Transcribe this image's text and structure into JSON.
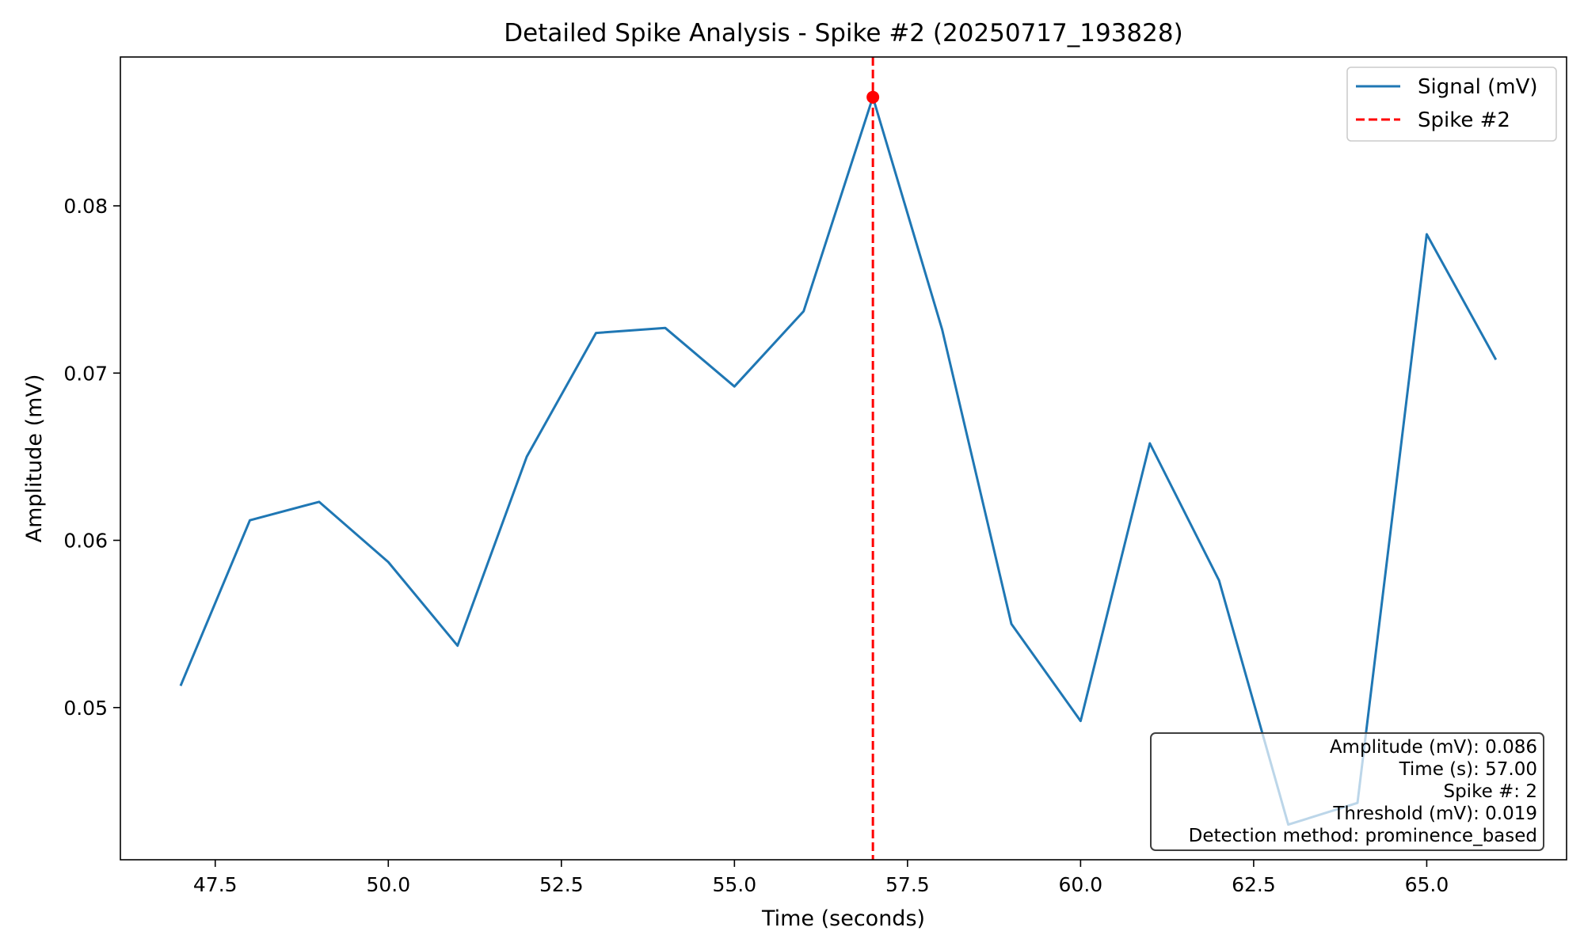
{
  "chart_data": {
    "type": "line",
    "title": "Detailed Spike Analysis - Spike #2 (20250717_193828)",
    "xlabel": "Time (seconds)",
    "ylabel": "Amplitude (mV)",
    "xlim": [
      46.13,
      67.02
    ],
    "ylim": [
      0.0409,
      0.0889
    ],
    "xticks": [
      47.5,
      50.0,
      52.5,
      55.0,
      57.5,
      60.0,
      62.5,
      65.0
    ],
    "xtick_labels": [
      "47.5",
      "50.0",
      "52.5",
      "55.0",
      "57.5",
      "60.0",
      "62.5",
      "65.0"
    ],
    "yticks": [
      0.05,
      0.06,
      0.07,
      0.08
    ],
    "ytick_labels": [
      "0.05",
      "0.06",
      "0.07",
      "0.08"
    ],
    "grid": false,
    "legend_position": "top-right",
    "series": [
      {
        "name": "Signal (mV)",
        "color": "#1f77b4",
        "x": [
          47,
          48,
          49,
          50,
          51,
          52,
          53,
          54,
          55,
          56,
          57,
          58,
          59,
          60,
          61,
          62,
          63,
          64,
          65,
          66
        ],
        "y": [
          0.0513,
          0.0612,
          0.0623,
          0.0587,
          0.0537,
          0.065,
          0.0724,
          0.0727,
          0.0692,
          0.0737,
          0.0865,
          0.0726,
          0.055,
          0.0492,
          0.0658,
          0.0576,
          0.043,
          0.0443,
          0.0783,
          0.0708
        ]
      }
    ],
    "spike_marker": {
      "name": "Spike #2",
      "x": 57.0,
      "y": 0.0865,
      "color": "#ff0000"
    },
    "info_box": [
      "Amplitude (mV): 0.086",
      "Time (s): 57.00",
      "Spike #: 2",
      "Threshold (mV): 0.019",
      "Detection method: prominence_based"
    ]
  }
}
